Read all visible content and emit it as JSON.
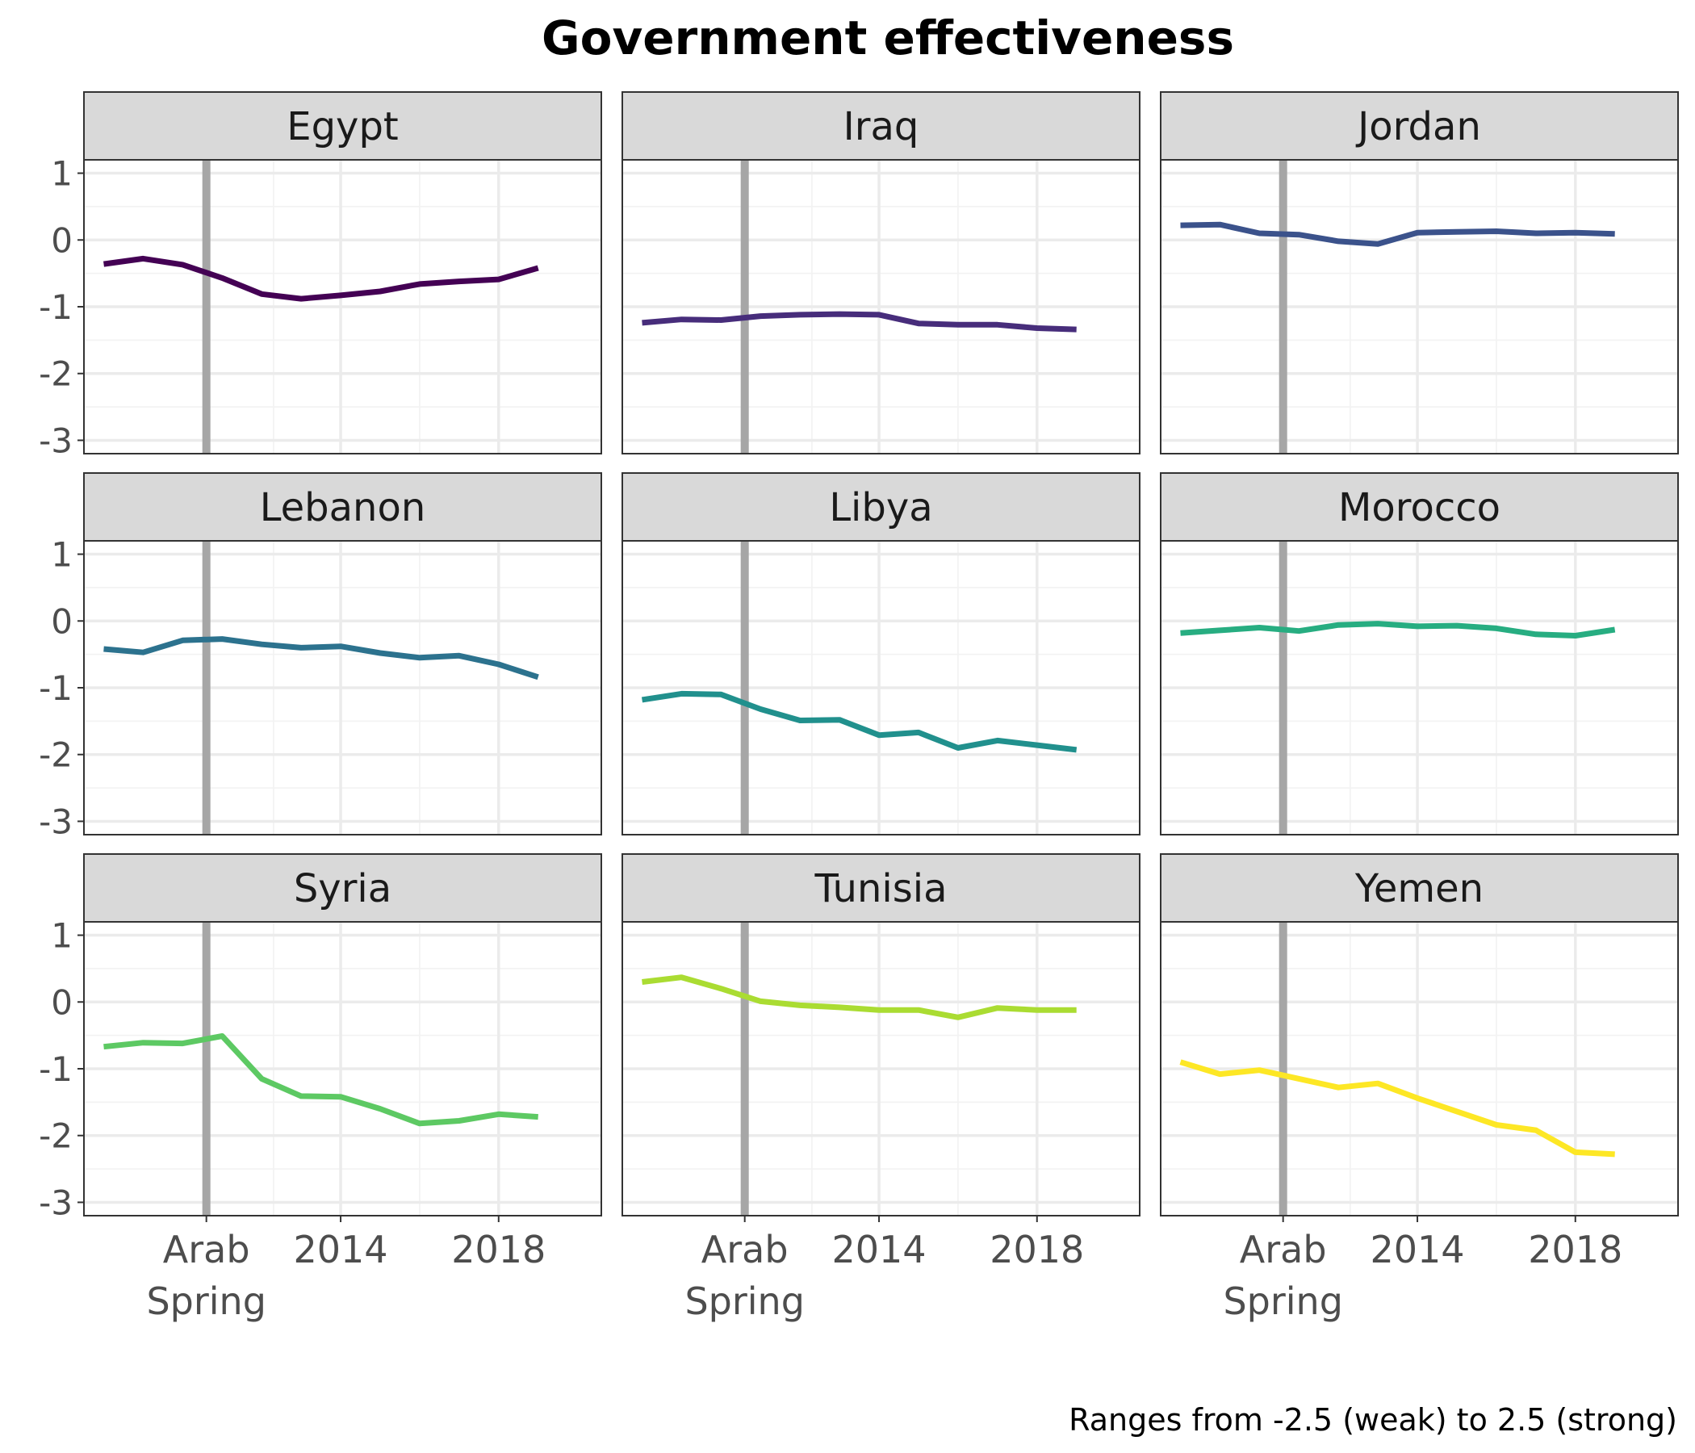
{
  "chart_data": {
    "type": "line",
    "title": "Government effectiveness",
    "caption": "Ranges from -2.5 (weak) to 2.5 (strong)",
    "xlabel": "",
    "ylabel": "",
    "xlim": [
      2007.5,
      2020.6
    ],
    "ylim": [
      -3.2,
      1.2
    ],
    "x": [
      2008,
      2009,
      2010,
      2011,
      2012,
      2013,
      2014,
      2015,
      2016,
      2017,
      2018,
      2019
    ],
    "reference_line": {
      "x": 2010.6,
      "color": "#a6a6a6"
    },
    "x_ticks": [
      {
        "value": 2010.6,
        "lines": [
          "Arab",
          "Spring"
        ]
      },
      {
        "value": 2014,
        "lines": [
          "2014"
        ]
      },
      {
        "value": 2018,
        "lines": [
          "2018"
        ]
      }
    ],
    "y_ticks": [
      {
        "value": 1,
        "label": "1"
      },
      {
        "value": 0,
        "label": "0"
      },
      {
        "value": -1,
        "label": "-1"
      },
      {
        "value": -2,
        "label": "-2"
      },
      {
        "value": -3,
        "label": "-3"
      }
    ],
    "grid": true,
    "facets": [
      {
        "name": "Egypt",
        "color": "#440154",
        "values": [
          -0.36,
          -0.28,
          -0.37,
          -0.57,
          -0.81,
          -0.88,
          -0.83,
          -0.77,
          -0.66,
          -0.62,
          -0.59,
          -0.42
        ]
      },
      {
        "name": "Iraq",
        "color": "#472d7b",
        "values": [
          -1.24,
          -1.19,
          -1.2,
          -1.14,
          -1.12,
          -1.11,
          -1.12,
          -1.25,
          -1.27,
          -1.27,
          -1.32,
          -1.34
        ]
      },
      {
        "name": "Jordan",
        "color": "#3b528b",
        "values": [
          0.22,
          0.23,
          0.1,
          0.08,
          -0.02,
          -0.06,
          0.11,
          0.12,
          0.13,
          0.1,
          0.11,
          0.09
        ]
      },
      {
        "name": "Lebanon",
        "color": "#2c728e",
        "values": [
          -0.42,
          -0.47,
          -0.29,
          -0.27,
          -0.35,
          -0.4,
          -0.38,
          -0.48,
          -0.55,
          -0.52,
          -0.65,
          -0.84
        ]
      },
      {
        "name": "Libya",
        "color": "#21908d",
        "values": [
          -1.18,
          -1.09,
          -1.1,
          -1.32,
          -1.49,
          -1.48,
          -1.71,
          -1.67,
          -1.9,
          -1.79,
          -1.86,
          -1.93
        ]
      },
      {
        "name": "Morocco",
        "color": "#27ad81",
        "values": [
          -0.18,
          -0.14,
          -0.1,
          -0.15,
          -0.06,
          -0.04,
          -0.08,
          -0.07,
          -0.11,
          -0.2,
          -0.22,
          -0.13
        ]
      },
      {
        "name": "Syria",
        "color": "#5dc963",
        "values": [
          -0.67,
          -0.61,
          -0.62,
          -0.51,
          -1.15,
          -1.41,
          -1.42,
          -1.6,
          -1.82,
          -1.78,
          -1.68,
          -1.72
        ]
      },
      {
        "name": "Tunisia",
        "color": "#aadc32",
        "values": [
          0.3,
          0.37,
          0.2,
          0.01,
          -0.05,
          -0.08,
          -0.12,
          -0.12,
          -0.23,
          -0.09,
          -0.12,
          -0.12
        ]
      },
      {
        "name": "Yemen",
        "color": "#fde725",
        "values": [
          -0.9,
          -1.08,
          -1.02,
          -1.15,
          -1.28,
          -1.22,
          -1.44,
          -1.64,
          -1.84,
          -1.92,
          -2.25,
          -2.28
        ]
      }
    ]
  }
}
